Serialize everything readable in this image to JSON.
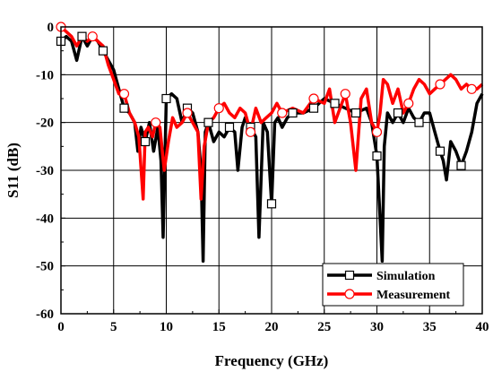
{
  "chart_data": {
    "type": "line",
    "title": "",
    "xlabel": "Frequency (GHz)",
    "ylabel": "S11 (dB)",
    "xlim": [
      0,
      40
    ],
    "ylim": [
      -60,
      0
    ],
    "xticks": [
      "0",
      "5",
      "10",
      "15",
      "20",
      "25",
      "30",
      "35",
      "40"
    ],
    "yticks": [
      "0",
      "-10",
      "-20",
      "-30",
      "-40",
      "-50",
      "-60"
    ],
    "grid": true,
    "legend_position": "bottom-right",
    "series": [
      {
        "name": "Simulation",
        "color": "#000000",
        "marker": "square",
        "marker_x": [
          0,
          2,
          4,
          6,
          8,
          10,
          12,
          14,
          16,
          18,
          20,
          22,
          24,
          26,
          28,
          30,
          32,
          34,
          36,
          38
        ],
        "x": [
          0,
          0.5,
          1,
          1.5,
          2,
          2.5,
          3,
          3.5,
          4,
          4.5,
          5,
          5.5,
          6,
          6.5,
          7,
          7.3,
          7.6,
          8,
          8.4,
          8.8,
          9.2,
          9.5,
          9.7,
          10,
          10.5,
          11,
          11.5,
          12,
          12.5,
          13,
          13.3,
          13.5,
          13.7,
          14,
          14.5,
          15,
          15.5,
          16,
          16.5,
          16.8,
          17.2,
          17.5,
          18,
          18.5,
          18.8,
          19.2,
          19.6,
          20,
          20.3,
          20.6,
          21,
          21.5,
          22,
          23,
          24,
          25,
          26,
          27,
          28,
          29,
          29.5,
          30,
          30.3,
          30.5,
          30.7,
          31,
          31.5,
          32,
          32.5,
          33,
          33.5,
          34,
          34.5,
          35,
          35.5,
          36,
          36.3,
          36.6,
          37,
          37.5,
          38,
          38.5,
          39,
          39.5,
          40
        ],
        "y": [
          -3,
          -2,
          -3,
          -7,
          -2,
          -4,
          -2,
          -3,
          -5,
          -7,
          -9,
          -13,
          -17,
          -18,
          -20,
          -26,
          -21,
          -24,
          -20,
          -26,
          -21,
          -28,
          -44,
          -15,
          -14,
          -15,
          -20,
          -17,
          -18,
          -22,
          -30,
          -49,
          -22,
          -20,
          -24,
          -22,
          -23,
          -21,
          -22,
          -30,
          -21,
          -19,
          -21,
          -23,
          -44,
          -20,
          -22,
          -37,
          -20,
          -19,
          -21,
          -19,
          -18,
          -18,
          -17,
          -15,
          -16,
          -17,
          -18,
          -17,
          -20,
          -27,
          -40,
          -49,
          -25,
          -18,
          -20,
          -18,
          -20,
          -17,
          -19,
          -20,
          -18,
          -18,
          -22,
          -26,
          -28,
          -32,
          -24,
          -26,
          -29,
          -26,
          -22,
          -16,
          -14
        ]
      },
      {
        "name": "Measurement",
        "color": "#ff0000",
        "marker": "circle",
        "marker_x": [
          0,
          3,
          6,
          9,
          12,
          15,
          18,
          21,
          24,
          27,
          30,
          33,
          36,
          39
        ],
        "x": [
          0,
          0.5,
          1,
          1.5,
          2,
          2.5,
          3,
          3.5,
          4,
          4.5,
          5,
          5.5,
          6,
          6.5,
          7,
          7.4,
          7.8,
          8,
          8.3,
          8.7,
          9,
          9.4,
          9.8,
          10.2,
          10.6,
          11,
          11.5,
          12,
          12.5,
          13,
          13.3,
          13.6,
          14,
          14.5,
          15,
          15.5,
          16,
          16.5,
          17,
          17.5,
          18,
          18.5,
          19,
          19.5,
          20,
          20.5,
          21,
          22,
          23,
          24,
          25,
          25.5,
          26,
          26.5,
          27,
          27.5,
          28,
          28.5,
          29,
          29.5,
          30,
          30.3,
          30.6,
          31,
          31.5,
          32,
          32.5,
          33,
          33.5,
          34,
          34.5,
          35,
          35.5,
          36,
          36.5,
          37,
          37.5,
          38,
          38.5,
          39,
          39.5,
          40
        ],
        "y": [
          0,
          -1,
          -2,
          -4,
          -2,
          -3,
          -2,
          -3,
          -4,
          -8,
          -11,
          -14,
          -14,
          -18,
          -20,
          -23,
          -36,
          -22,
          -21,
          -23,
          -20,
          -21,
          -30,
          -24,
          -19,
          -21,
          -20,
          -18,
          -20,
          -22,
          -36,
          -25,
          -20,
          -19,
          -17,
          -16,
          -18,
          -19,
          -17,
          -18,
          -22,
          -17,
          -20,
          -19,
          -18,
          -16,
          -18,
          -17,
          -18,
          -15,
          -16,
          -13,
          -20,
          -17,
          -14,
          -20,
          -30,
          -15,
          -13,
          -20,
          -22,
          -18,
          -11,
          -12,
          -16,
          -13,
          -18,
          -16,
          -13,
          -11,
          -12,
          -14,
          -13,
          -12,
          -11,
          -10,
          -11,
          -13,
          -12,
          -13,
          -13,
          -12
        ]
      }
    ]
  }
}
